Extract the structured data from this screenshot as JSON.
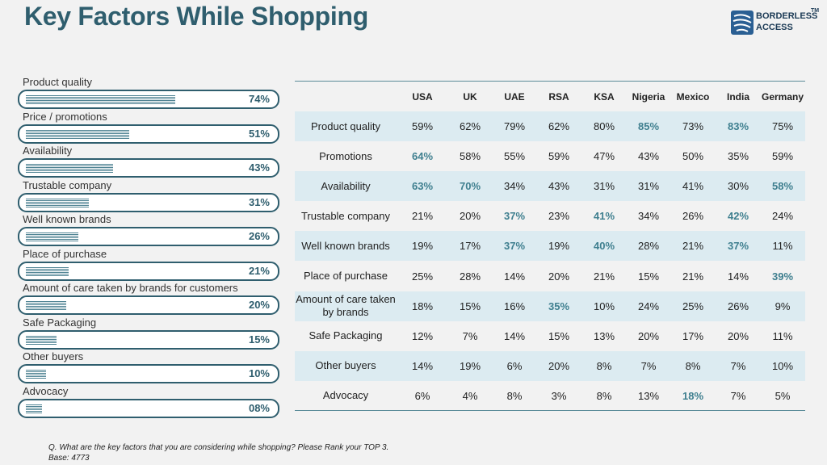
{
  "title": "Key Factors While Shopping",
  "logo": {
    "line1": "BORDERLESS",
    "line2": "ACCESS",
    "tm": "TM"
  },
  "colors": {
    "accent": "#2f5e6e",
    "highlight": "#3f7f8f",
    "shade": "#dcebf1"
  },
  "chart_data": [
    {
      "type": "bar",
      "orientation": "horizontal",
      "categories": [
        "Product quality",
        "Price / promotions",
        "Availability",
        "Trustable company",
        "Well known brands",
        "Place of purchase",
        "Amount of care taken by brands for customers",
        "Safe Packaging",
        "Other buyers",
        "Advocacy"
      ],
      "values": [
        74,
        51,
        43,
        31,
        26,
        21,
        20,
        15,
        10,
        8
      ],
      "value_labels": [
        "74%",
        "51%",
        "43%",
        "31%",
        "26%",
        "21%",
        "20%",
        "15%",
        "10%",
        "08%"
      ],
      "xlim": [
        0,
        100
      ]
    },
    {
      "type": "table",
      "columns": [
        "USA",
        "UK",
        "UAE",
        "RSA",
        "KSA",
        "Nigeria",
        "Mexico",
        "India",
        "Germany"
      ],
      "rows": [
        {
          "label": "Product quality",
          "cells": [
            "59%",
            "62%",
            "79%",
            "62%",
            "80%",
            "85%",
            "73%",
            "83%",
            "75%"
          ],
          "highlight": [
            5,
            7
          ]
        },
        {
          "label": "Promotions",
          "cells": [
            "64%",
            "58%",
            "55%",
            "59%",
            "47%",
            "43%",
            "50%",
            "35%",
            "59%"
          ],
          "highlight": [
            0
          ]
        },
        {
          "label": "Availability",
          "cells": [
            "63%",
            "70%",
            "34%",
            "43%",
            "31%",
            "31%",
            "41%",
            "30%",
            "58%"
          ],
          "highlight": [
            0,
            1,
            8
          ]
        },
        {
          "label": "Trustable company",
          "cells": [
            "21%",
            "20%",
            "37%",
            "23%",
            "41%",
            "34%",
            "26%",
            "42%",
            "24%"
          ],
          "highlight": [
            2,
            4,
            7
          ]
        },
        {
          "label": "Well known brands",
          "cells": [
            "19%",
            "17%",
            "37%",
            "19%",
            "40%",
            "28%",
            "21%",
            "37%",
            "11%"
          ],
          "highlight": [
            2,
            4,
            7
          ]
        },
        {
          "label": "Place of purchase",
          "cells": [
            "25%",
            "28%",
            "14%",
            "20%",
            "21%",
            "15%",
            "21%",
            "14%",
            "39%"
          ],
          "highlight": [
            8
          ]
        },
        {
          "label": "Amount of care taken by brands",
          "cells": [
            "18%",
            "15%",
            "16%",
            "35%",
            "10%",
            "24%",
            "25%",
            "26%",
            "9%"
          ],
          "highlight": [
            3
          ]
        },
        {
          "label": "Safe Packaging",
          "cells": [
            "12%",
            "7%",
            "14%",
            "15%",
            "13%",
            "20%",
            "17%",
            "20%",
            "11%"
          ],
          "highlight": []
        },
        {
          "label": "Other buyers",
          "cells": [
            "14%",
            "19%",
            "6%",
            "20%",
            "8%",
            "7%",
            "8%",
            "7%",
            "10%"
          ],
          "highlight": []
        },
        {
          "label": "Advocacy",
          "cells": [
            "6%",
            "4%",
            "8%",
            "3%",
            "8%",
            "13%",
            "18%",
            "7%",
            "5%"
          ],
          "highlight": [
            6
          ]
        }
      ]
    }
  ],
  "footnote": {
    "question": "Q. What are the key factors that you are considering while shopping?  Please Rank your TOP 3.",
    "base": "Base: 4773"
  }
}
